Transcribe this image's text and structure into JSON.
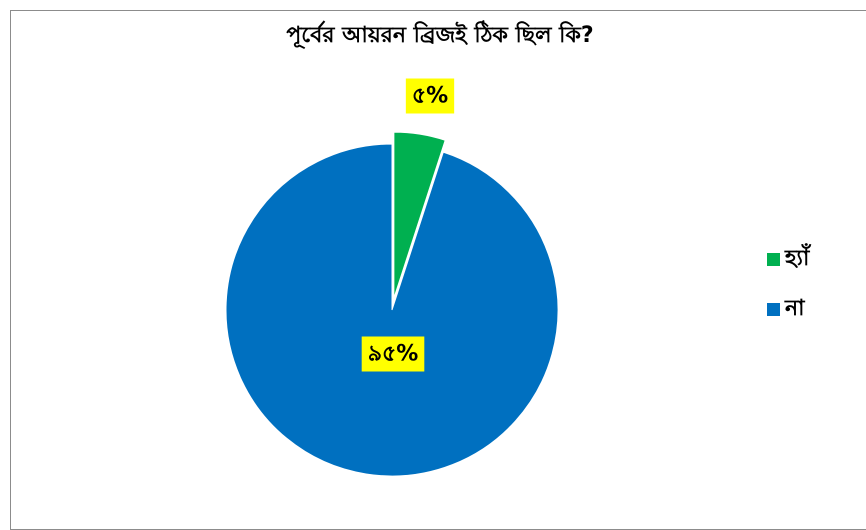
{
  "chart_data": {
    "type": "pie",
    "title": "পূর্বের আয়রন ব্রিজই ঠিক ছিল কি?",
    "slices": [
      {
        "name": "হ্যাঁ",
        "value": 5,
        "label": "৫%",
        "color": "#00b050",
        "exploded": true
      },
      {
        "name": "না",
        "value": 95,
        "label": "৯৫%",
        "color": "#0070c0",
        "exploded": false
      }
    ],
    "label_background": "#ffff00",
    "legend_position": "right"
  }
}
